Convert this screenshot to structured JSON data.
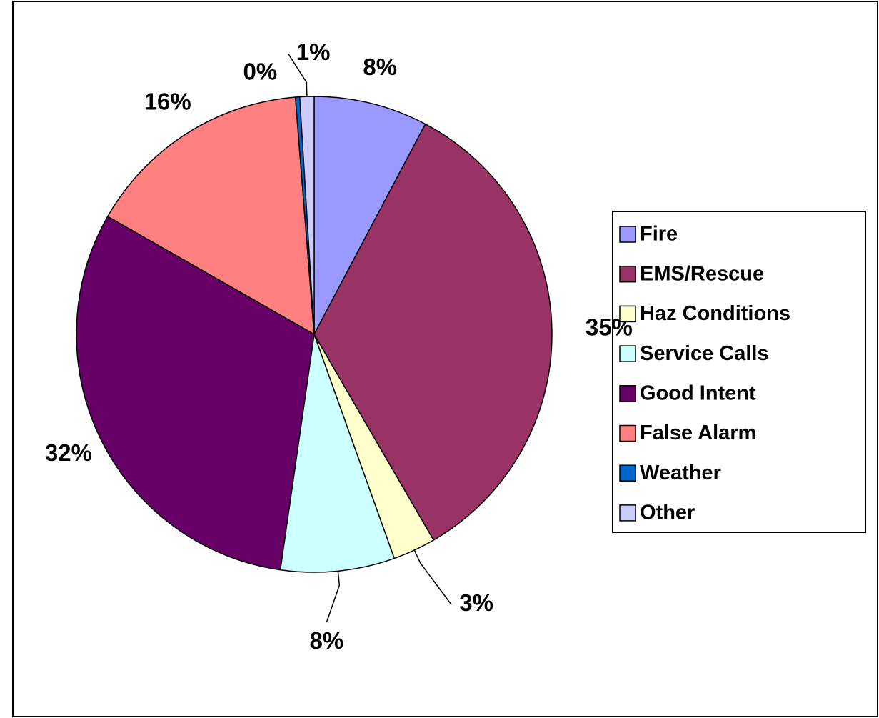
{
  "chart_data": {
    "type": "pie",
    "categories": [
      "Fire",
      "EMS/Rescue",
      "Haz Conditions",
      "Service Calls",
      "Good Intent",
      "False Alarm",
      "Weather",
      "Other"
    ],
    "values": [
      8,
      35,
      3,
      8,
      32,
      16,
      0.3,
      1
    ],
    "value_labels": [
      "8%",
      "35%",
      "3%",
      "8%",
      "32%",
      "16%",
      "0%",
      "1%"
    ],
    "colors": [
      "#9999ff",
      "#993366",
      "#ffffcc",
      "#ccffff",
      "#660066",
      "#ff8080",
      "#0066cc",
      "#ccccff"
    ]
  }
}
